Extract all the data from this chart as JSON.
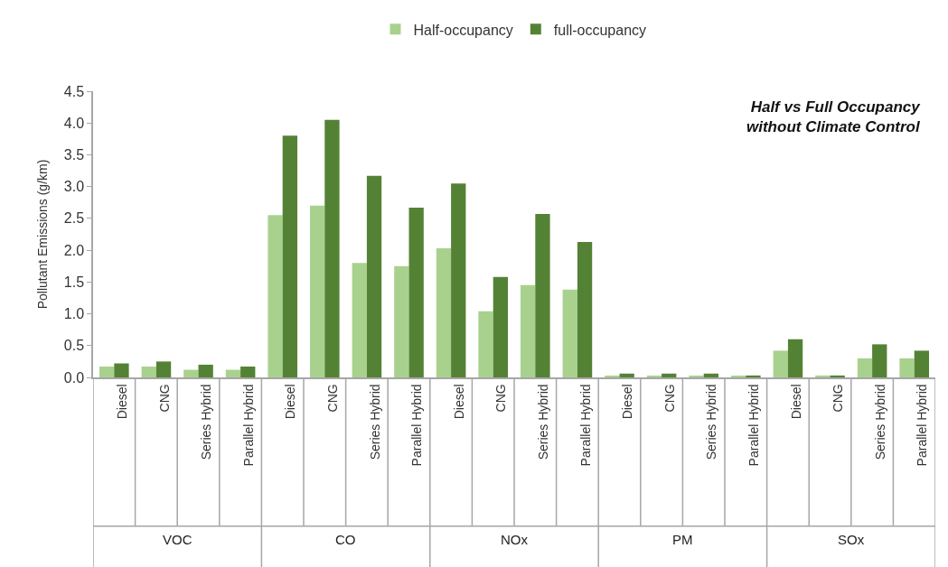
{
  "chart_data": {
    "type": "bar",
    "title": "Half vs Full Occupancy\nwithout Climate Control",
    "ylabel": "Pollutant Emissions (g/km)",
    "categories": [
      "Diesel",
      "CNG",
      "Series Hybrid",
      "Parallel Hybrid",
      "Diesel",
      "CNG",
      "Series Hybrid",
      "Parallel Hybrid",
      "Diesel",
      "CNG",
      "Series Hybrid",
      "Parallel Hybrid",
      "Diesel",
      "CNG",
      "Series Hybrid",
      "Parallel Hybrid",
      "Diesel",
      "CNG",
      "Series Hybrid",
      "Parallel Hybrid"
    ],
    "annotations": [
      "VOC",
      "CO",
      "NOx",
      "PM",
      "SOx"
    ],
    "series": [
      {
        "name": "Half-occupancy",
        "color": "#a9d18e",
        "values": [
          0.17,
          0.17,
          0.12,
          0.12,
          2.55,
          2.7,
          1.8,
          1.75,
          2.03,
          1.04,
          1.45,
          1.38,
          0.02,
          0.02,
          0.02,
          0.02,
          0.42,
          0.03,
          0.3,
          0.3
        ]
      },
      {
        "name": "full-occupancy",
        "color": "#548235",
        "values": [
          0.22,
          0.25,
          0.2,
          0.17,
          3.8,
          4.05,
          3.17,
          2.67,
          3.05,
          1.58,
          2.57,
          2.13,
          0.06,
          0.06,
          0.06,
          0.03,
          0.6,
          0.03,
          0.52,
          0.42
        ]
      }
    ],
    "ylim": [
      0,
      4.5
    ],
    "yticks": [
      {
        "value": 0,
        "label": "0.0"
      },
      {
        "value": 0.5,
        "label": "0.5"
      },
      {
        "value": 1,
        "label": "1.0"
      },
      {
        "value": 1.5,
        "label": "1.5"
      },
      {
        "value": 2,
        "label": "2.0"
      },
      {
        "value": 2.5,
        "label": "2.5"
      },
      {
        "value": 3,
        "label": "3.0"
      },
      {
        "value": 3.5,
        "label": "3.5"
      },
      {
        "value": 4,
        "label": "4.0"
      },
      {
        "value": 4.5,
        "label": "4.5"
      }
    ],
    "grid": false,
    "legend": "top"
  }
}
